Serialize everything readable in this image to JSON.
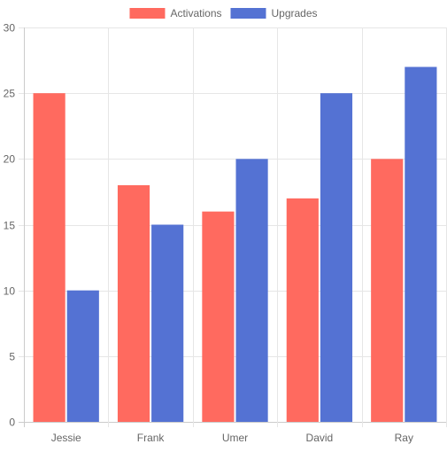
{
  "chart_data": {
    "type": "bar",
    "categories": [
      "Jessie",
      "Frank",
      "Umer",
      "David",
      "Ray"
    ],
    "series": [
      {
        "name": "Activations",
        "color": "#ff6a5f",
        "values": [
          25,
          18,
          16,
          17,
          20
        ]
      },
      {
        "name": "Upgrades",
        "color": "#5472d3",
        "values": [
          10,
          15,
          20,
          25,
          27
        ]
      }
    ],
    "ylim": [
      0,
      30
    ],
    "yticks": [
      0,
      5,
      10,
      15,
      20,
      25,
      30
    ],
    "grid": true,
    "legend_position": "top-center",
    "xlabel": "",
    "ylabel": "",
    "title": ""
  }
}
